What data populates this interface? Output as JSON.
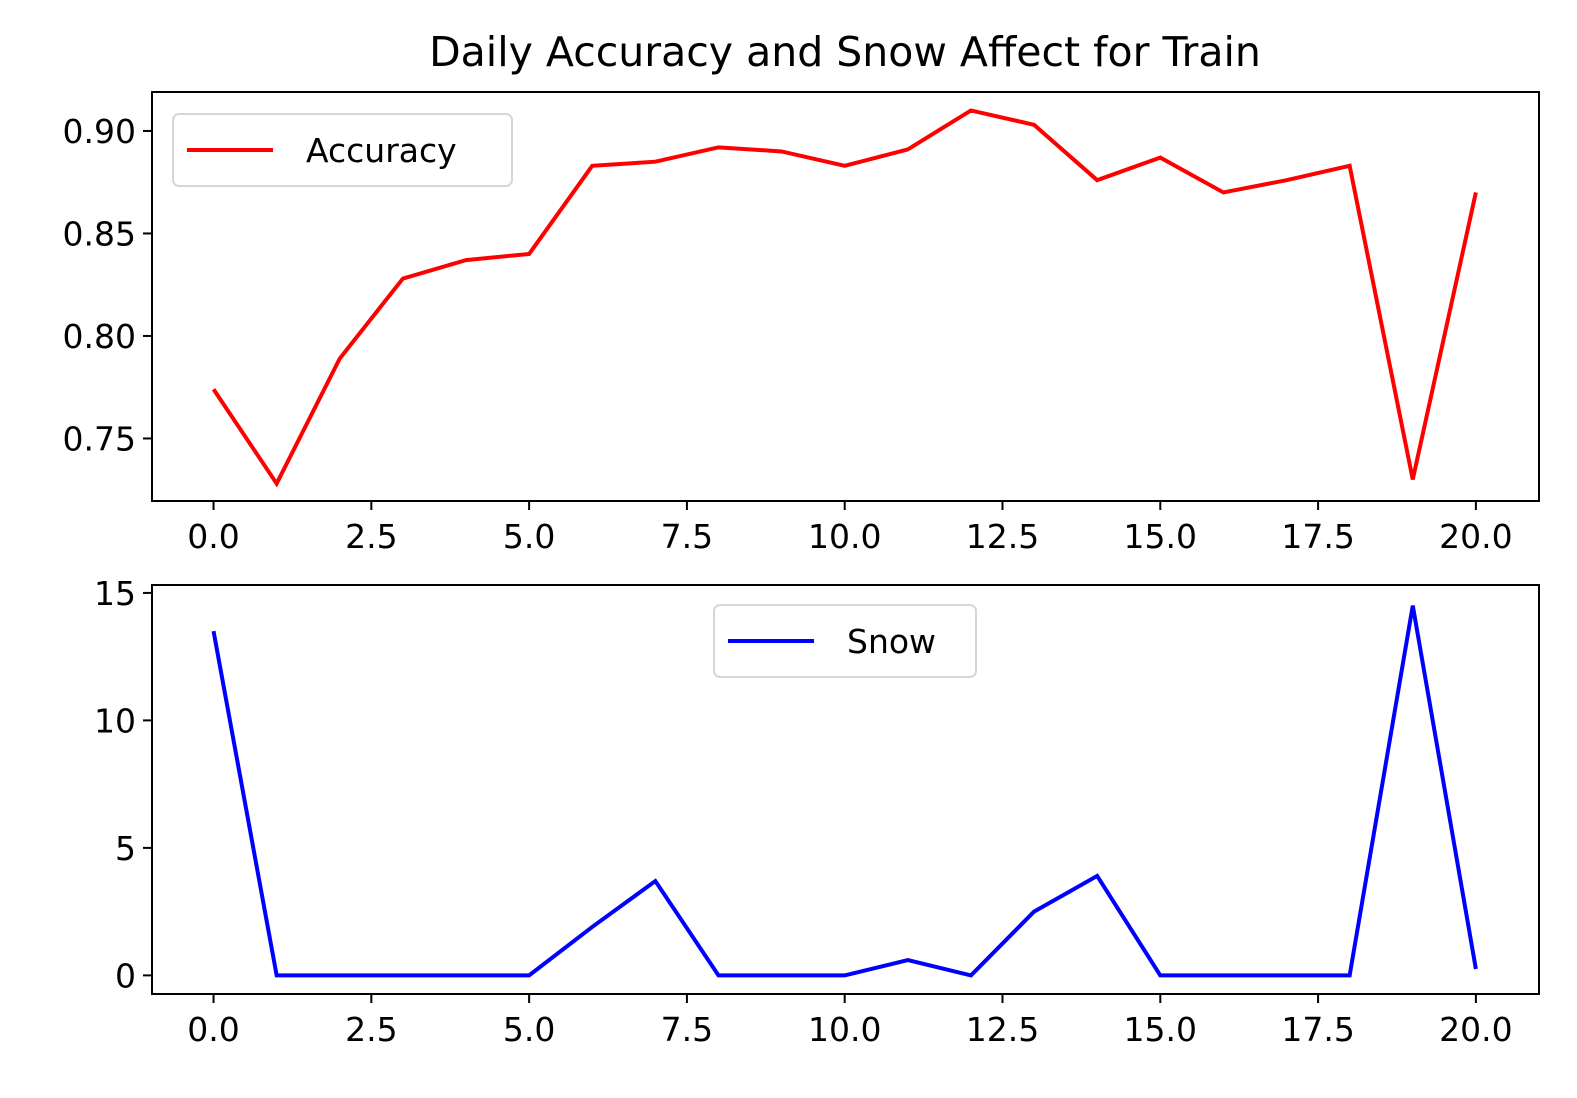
{
  "chart_data": [
    {
      "type": "line",
      "title": "Daily Accuracy and Snow Affect for Train",
      "xlabel": "",
      "ylabel": "",
      "xlim": [
        -0.975,
        21.0
      ],
      "ylim": [
        0.7195,
        0.919
      ],
      "xticks": [
        0.0,
        2.5,
        5.0,
        7.5,
        10.0,
        12.5,
        15.0,
        17.5,
        20.0
      ],
      "xtick_labels": [
        "0.0",
        "2.5",
        "5.0",
        "7.5",
        "10.0",
        "12.5",
        "15.0",
        "17.5",
        "20.0"
      ],
      "yticks": [
        0.75,
        0.8,
        0.85,
        0.9
      ],
      "ytick_labels": [
        "0.75",
        "0.80",
        "0.85",
        "0.90"
      ],
      "grid": false,
      "legend_position": "upper left",
      "x": [
        0,
        1,
        2,
        3,
        4,
        5,
        6,
        7,
        8,
        9,
        10,
        11,
        12,
        13,
        14,
        15,
        16,
        17,
        18,
        19,
        20
      ],
      "series": [
        {
          "name": "Accuracy",
          "color": "#ff0000",
          "values": [
            0.774,
            0.728,
            0.789,
            0.828,
            0.837,
            0.84,
            0.883,
            0.885,
            0.892,
            0.89,
            0.883,
            0.891,
            0.91,
            0.903,
            0.876,
            0.887,
            0.87,
            0.876,
            0.883,
            0.73,
            0.87
          ]
        }
      ]
    },
    {
      "type": "line",
      "title": "",
      "xlabel": "",
      "ylabel": "",
      "xlim": [
        -0.975,
        21.0
      ],
      "ylim": [
        -0.73,
        15.31
      ],
      "xticks": [
        0.0,
        2.5,
        5.0,
        7.5,
        10.0,
        12.5,
        15.0,
        17.5,
        20.0
      ],
      "xtick_labels": [
        "0.0",
        "2.5",
        "5.0",
        "7.5",
        "10.0",
        "12.5",
        "15.0",
        "17.5",
        "20.0"
      ],
      "yticks": [
        0,
        5,
        10,
        15
      ],
      "ytick_labels": [
        "0",
        "5",
        "10",
        "15"
      ],
      "grid": false,
      "legend_position": "upper center",
      "x": [
        0,
        1,
        2,
        3,
        4,
        5,
        6,
        7,
        8,
        9,
        10,
        11,
        12,
        13,
        14,
        15,
        16,
        17,
        18,
        19,
        20
      ],
      "series": [
        {
          "name": "Snow",
          "color": "#0000ff",
          "values": [
            13.5,
            0,
            0,
            0,
            0,
            0,
            1.9,
            3.7,
            0,
            0,
            0,
            0.6,
            0,
            2.5,
            3.9,
            0,
            0,
            0,
            0,
            14.5,
            0.25
          ]
        }
      ]
    }
  ]
}
